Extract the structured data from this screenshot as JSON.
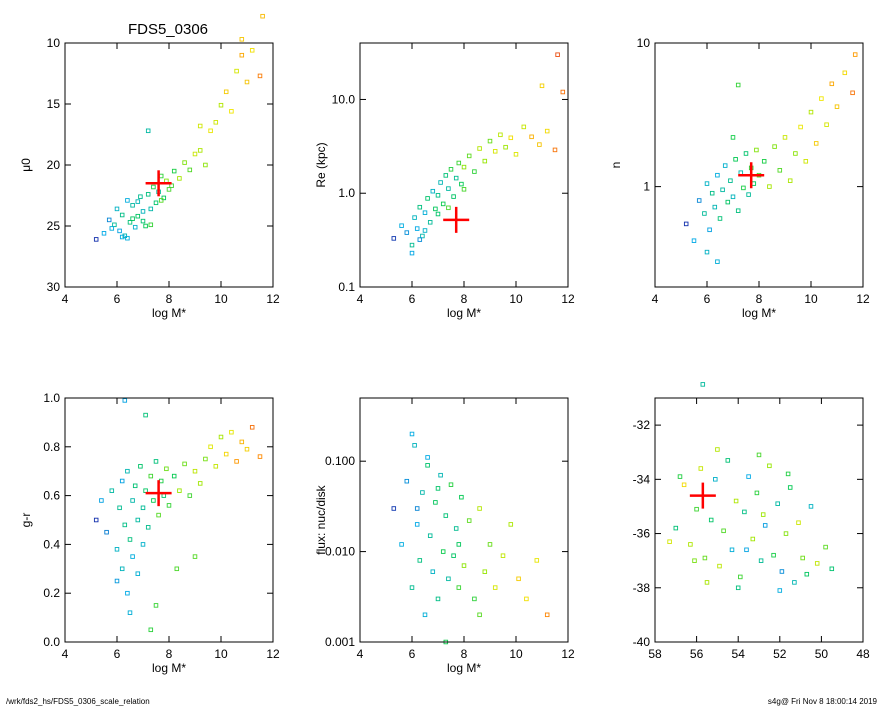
{
  "title": "FDS5_0306",
  "footer": {
    "left": "/wrk/fds2_hs/FDS5_0306_scale_relation",
    "right": "s4g@  Fri Nov  8 18:00:14 2019"
  },
  "colors": {
    "marker": "#ff0000",
    "axes": "#000000"
  },
  "chart_data": [
    {
      "id": "mu0",
      "type": "scatter",
      "xlabel": "log M*",
      "ylabel": "μ0",
      "xlim": [
        4,
        12
      ],
      "ylim": [
        30,
        10
      ],
      "xticks": [
        "4",
        "6",
        "8",
        "10",
        "12"
      ],
      "yticks": [
        "10",
        "15",
        "20",
        "25",
        "30"
      ],
      "marker": {
        "x": 7.6,
        "y": 21.5
      },
      "points": [
        [
          5.2,
          26.1
        ],
        [
          5.5,
          25.6
        ],
        [
          5.7,
          24.5
        ],
        [
          5.9,
          24.9
        ],
        [
          6.0,
          23.6
        ],
        [
          6.1,
          25.4
        ],
        [
          6.2,
          24.1
        ],
        [
          6.3,
          25.8
        ],
        [
          6.4,
          22.9
        ],
        [
          6.5,
          24.7
        ],
        [
          6.6,
          23.3
        ],
        [
          6.7,
          25.1
        ],
        [
          6.8,
          24.2
        ],
        [
          6.9,
          22.6
        ],
        [
          7.0,
          23.8
        ],
        [
          7.1,
          25.0
        ],
        [
          7.2,
          22.4
        ],
        [
          7.3,
          23.6
        ],
        [
          7.4,
          21.8
        ],
        [
          7.5,
          23.1
        ],
        [
          7.6,
          22.2
        ],
        [
          7.7,
          20.9
        ],
        [
          7.8,
          22.7
        ],
        [
          7.9,
          21.3
        ],
        [
          8.0,
          22.0
        ],
        [
          8.2,
          20.5
        ],
        [
          8.4,
          21.1
        ],
        [
          8.6,
          19.8
        ],
        [
          8.8,
          20.4
        ],
        [
          9.0,
          19.1
        ],
        [
          9.2,
          18.8
        ],
        [
          9.4,
          20.0
        ],
        [
          9.6,
          17.2
        ],
        [
          9.8,
          16.5
        ],
        [
          10.0,
          15.1
        ],
        [
          10.2,
          14.0
        ],
        [
          10.4,
          15.6
        ],
        [
          10.6,
          12.3
        ],
        [
          10.8,
          11.0
        ],
        [
          11.0,
          13.2
        ],
        [
          11.2,
          10.6
        ],
        [
          11.5,
          12.7
        ],
        [
          6.2,
          25.9
        ],
        [
          6.6,
          24.4
        ],
        [
          7.0,
          24.6
        ],
        [
          6.8,
          23.0
        ],
        [
          7.3,
          24.9
        ],
        [
          5.8,
          25.2
        ],
        [
          6.4,
          26.0
        ],
        [
          7.7,
          22.9
        ],
        [
          8.1,
          21.7
        ],
        [
          7.2,
          17.2
        ],
        [
          9.2,
          16.8
        ],
        [
          10.8,
          9.7
        ],
        [
          11.6,
          7.8
        ]
      ]
    },
    {
      "id": "re",
      "type": "scatter",
      "xlabel": "log M*",
      "ylabel": "Re (kpc)",
      "ylog": true,
      "xlim": [
        4,
        12
      ],
      "ylim": [
        0.1,
        40
      ],
      "xticks": [
        "4",
        "6",
        "8",
        "10",
        "12"
      ],
      "yticks": [
        "0.1",
        "1.0",
        "10.0"
      ],
      "marker": {
        "x": 7.7,
        "y": 0.52
      },
      "points": [
        [
          5.3,
          0.33
        ],
        [
          5.6,
          0.45
        ],
        [
          5.8,
          0.38
        ],
        [
          6.0,
          0.28
        ],
        [
          6.1,
          0.55
        ],
        [
          6.2,
          0.42
        ],
        [
          6.3,
          0.71
        ],
        [
          6.4,
          0.35
        ],
        [
          6.5,
          0.62
        ],
        [
          6.6,
          0.88
        ],
        [
          6.7,
          0.49
        ],
        [
          6.8,
          1.05
        ],
        [
          6.9,
          0.68
        ],
        [
          7.0,
          0.95
        ],
        [
          7.1,
          1.3
        ],
        [
          7.2,
          0.77
        ],
        [
          7.3,
          1.55
        ],
        [
          7.4,
          1.12
        ],
        [
          7.5,
          1.8
        ],
        [
          7.6,
          0.92
        ],
        [
          7.7,
          1.45
        ],
        [
          7.8,
          2.1
        ],
        [
          7.9,
          1.25
        ],
        [
          8.0,
          1.9
        ],
        [
          8.2,
          2.5
        ],
        [
          8.4,
          1.7
        ],
        [
          8.6,
          3.0
        ],
        [
          8.8,
          2.2
        ],
        [
          9.0,
          3.6
        ],
        [
          9.2,
          2.8
        ],
        [
          9.4,
          4.2
        ],
        [
          9.6,
          3.1
        ],
        [
          9.8,
          3.9
        ],
        [
          10.0,
          2.6
        ],
        [
          10.3,
          5.1
        ],
        [
          10.6,
          4.0
        ],
        [
          10.9,
          3.3
        ],
        [
          11.2,
          4.6
        ],
        [
          11.5,
          2.9
        ],
        [
          6.0,
          0.23
        ],
        [
          6.3,
          0.32
        ],
        [
          7.0,
          0.6
        ],
        [
          6.5,
          0.4
        ],
        [
          7.4,
          0.7
        ],
        [
          8.0,
          1.1
        ],
        [
          11.0,
          14.0
        ],
        [
          11.6,
          30.0
        ],
        [
          11.8,
          12.0
        ]
      ]
    },
    {
      "id": "n",
      "type": "scatter",
      "xlabel": "log M*",
      "ylabel": "n",
      "ylog": true,
      "xlim": [
        4,
        12
      ],
      "ylim": [
        0.2,
        10
      ],
      "xticks": [
        "4",
        "6",
        "8",
        "10",
        "12"
      ],
      "yticks": [
        "1",
        "10"
      ],
      "marker": {
        "x": 7.7,
        "y": 1.2
      },
      "points": [
        [
          5.2,
          0.55
        ],
        [
          5.5,
          0.42
        ],
        [
          5.7,
          0.8
        ],
        [
          5.9,
          0.65
        ],
        [
          6.0,
          1.05
        ],
        [
          6.1,
          0.5
        ],
        [
          6.2,
          0.9
        ],
        [
          6.3,
          0.72
        ],
        [
          6.4,
          1.2
        ],
        [
          6.5,
          0.6
        ],
        [
          6.6,
          0.95
        ],
        [
          6.7,
          1.4
        ],
        [
          6.8,
          0.78
        ],
        [
          6.9,
          1.1
        ],
        [
          7.0,
          0.85
        ],
        [
          7.1,
          1.55
        ],
        [
          7.2,
          0.68
        ],
        [
          7.3,
          1.25
        ],
        [
          7.4,
          0.98
        ],
        [
          7.5,
          1.7
        ],
        [
          7.6,
          0.88
        ],
        [
          7.7,
          1.35
        ],
        [
          7.8,
          1.05
        ],
        [
          7.9,
          1.8
        ],
        [
          8.0,
          1.2
        ],
        [
          8.2,
          1.5
        ],
        [
          8.4,
          1.0
        ],
        [
          8.6,
          1.9
        ],
        [
          8.8,
          1.3
        ],
        [
          9.0,
          2.2
        ],
        [
          9.2,
          1.1
        ],
        [
          9.4,
          1.7
        ],
        [
          9.6,
          2.6
        ],
        [
          9.8,
          1.5
        ],
        [
          10.0,
          3.3
        ],
        [
          10.2,
          2.0
        ],
        [
          10.4,
          4.1
        ],
        [
          10.6,
          2.7
        ],
        [
          10.8,
          5.2
        ],
        [
          11.0,
          3.6
        ],
        [
          11.3,
          6.2
        ],
        [
          11.6,
          4.5
        ],
        [
          11.7,
          8.3
        ],
        [
          7.2,
          5.1
        ],
        [
          6.0,
          0.35
        ],
        [
          6.4,
          0.3
        ],
        [
          7.0,
          2.2
        ]
      ]
    },
    {
      "id": "gr",
      "type": "scatter",
      "xlabel": "log M*",
      "ylabel": "g-r",
      "xlim": [
        4,
        12
      ],
      "ylim": [
        0.0,
        1.0
      ],
      "xticks": [
        "4",
        "6",
        "8",
        "10",
        "12"
      ],
      "yticks": [
        "0.0",
        "0.2",
        "0.4",
        "0.6",
        "0.8",
        "1.0"
      ],
      "marker": {
        "x": 7.6,
        "y": 0.61
      },
      "points": [
        [
          5.2,
          0.5
        ],
        [
          5.4,
          0.58
        ],
        [
          5.6,
          0.45
        ],
        [
          5.8,
          0.62
        ],
        [
          6.0,
          0.38
        ],
        [
          6.0,
          0.25
        ],
        [
          6.1,
          0.55
        ],
        [
          6.2,
          0.3
        ],
        [
          6.2,
          0.66
        ],
        [
          6.3,
          0.48
        ],
        [
          6.4,
          0.7
        ],
        [
          6.4,
          0.2
        ],
        [
          6.5,
          0.42
        ],
        [
          6.6,
          0.58
        ],
        [
          6.6,
          0.35
        ],
        [
          6.7,
          0.64
        ],
        [
          6.8,
          0.5
        ],
        [
          6.8,
          0.28
        ],
        [
          6.9,
          0.72
        ],
        [
          7.0,
          0.55
        ],
        [
          7.0,
          0.4
        ],
        [
          7.1,
          0.62
        ],
        [
          7.2,
          0.47
        ],
        [
          7.3,
          0.68
        ],
        [
          7.4,
          0.58
        ],
        [
          7.5,
          0.74
        ],
        [
          7.6,
          0.52
        ],
        [
          7.7,
          0.66
        ],
        [
          7.8,
          0.6
        ],
        [
          7.9,
          0.71
        ],
        [
          8.0,
          0.56
        ],
        [
          8.2,
          0.68
        ],
        [
          8.4,
          0.62
        ],
        [
          8.6,
          0.73
        ],
        [
          8.8,
          0.6
        ],
        [
          9.0,
          0.7
        ],
        [
          9.2,
          0.65
        ],
        [
          9.4,
          0.75
        ],
        [
          9.6,
          0.8
        ],
        [
          9.8,
          0.72
        ],
        [
          10.0,
          0.84
        ],
        [
          10.2,
          0.77
        ],
        [
          10.4,
          0.86
        ],
        [
          10.6,
          0.74
        ],
        [
          10.8,
          0.82
        ],
        [
          11.0,
          0.79
        ],
        [
          11.2,
          0.88
        ],
        [
          11.5,
          0.76
        ],
        [
          6.5,
          0.12
        ],
        [
          7.3,
          0.05
        ],
        [
          7.1,
          0.93
        ],
        [
          6.3,
          0.99
        ],
        [
          7.5,
          0.15
        ],
        [
          8.3,
          0.3
        ],
        [
          9.0,
          0.35
        ]
      ]
    },
    {
      "id": "flux",
      "type": "scatter",
      "xlabel": "log M*",
      "ylabel": "flux: nuc/disk",
      "ylog": true,
      "xlim": [
        4,
        12
      ],
      "ylim": [
        0.001,
        0.5
      ],
      "xticks": [
        "4",
        "6",
        "8",
        "10",
        "12"
      ],
      "yticks": [
        "0.001",
        "0.010",
        "0.100"
      ],
      "points": [
        [
          5.3,
          0.03
        ],
        [
          5.6,
          0.012
        ],
        [
          5.8,
          0.06
        ],
        [
          6.0,
          0.004
        ],
        [
          6.1,
          0.15
        ],
        [
          6.2,
          0.02
        ],
        [
          6.3,
          0.008
        ],
        [
          6.4,
          0.045
        ],
        [
          6.5,
          0.002
        ],
        [
          6.6,
          0.09
        ],
        [
          6.7,
          0.015
        ],
        [
          6.8,
          0.006
        ],
        [
          6.9,
          0.035
        ],
        [
          7.0,
          0.003
        ],
        [
          7.1,
          0.07
        ],
        [
          7.2,
          0.01
        ],
        [
          7.3,
          0.025
        ],
        [
          7.4,
          0.005
        ],
        [
          7.5,
          0.055
        ],
        [
          7.6,
          0.009
        ],
        [
          7.7,
          0.018
        ],
        [
          7.8,
          0.004
        ],
        [
          7.9,
          0.04
        ],
        [
          8.0,
          0.007
        ],
        [
          8.2,
          0.022
        ],
        [
          8.4,
          0.003
        ],
        [
          8.6,
          0.03
        ],
        [
          8.8,
          0.006
        ],
        [
          9.0,
          0.012
        ],
        [
          9.2,
          0.004
        ],
        [
          9.5,
          0.009
        ],
        [
          9.8,
          0.02
        ],
        [
          10.1,
          0.005
        ],
        [
          10.4,
          0.003
        ],
        [
          10.8,
          0.008
        ],
        [
          11.2,
          0.002
        ],
        [
          6.0,
          0.2
        ],
        [
          6.6,
          0.11
        ],
        [
          7.3,
          0.001
        ],
        [
          8.6,
          0.002
        ],
        [
          6.2,
          0.03
        ],
        [
          7.0,
          0.05
        ],
        [
          7.8,
          0.012
        ]
      ]
    },
    {
      "id": "mag",
      "type": "scatter",
      "xlabel": "",
      "ylabel": "",
      "xlim": [
        58,
        48
      ],
      "ylim": [
        -40,
        -31
      ],
      "xticks": [
        "58",
        "56",
        "54",
        "52",
        "50",
        "48"
      ],
      "yticks": [
        "-40",
        "-38",
        "-36",
        "-34",
        "-32"
      ],
      "marker": {
        "x": 55.7,
        "y": -34.6
      },
      "points": [
        [
          57.0,
          -35.8
        ],
        [
          56.6,
          -34.2
        ],
        [
          56.3,
          -36.4
        ],
        [
          56.0,
          -35.1
        ],
        [
          55.8,
          -33.6
        ],
        [
          55.6,
          -36.9
        ],
        [
          55.3,
          -35.5
        ],
        [
          55.1,
          -34.0
        ],
        [
          54.9,
          -37.2
        ],
        [
          54.7,
          -35.9
        ],
        [
          54.5,
          -33.3
        ],
        [
          54.3,
          -36.6
        ],
        [
          54.1,
          -34.8
        ],
        [
          53.9,
          -37.6
        ],
        [
          53.7,
          -35.2
        ],
        [
          53.5,
          -33.9
        ],
        [
          53.3,
          -36.2
        ],
        [
          53.1,
          -34.5
        ],
        [
          52.9,
          -37.0
        ],
        [
          52.7,
          -35.7
        ],
        [
          52.5,
          -33.5
        ],
        [
          52.3,
          -36.8
        ],
        [
          52.1,
          -34.9
        ],
        [
          51.9,
          -37.4
        ],
        [
          51.7,
          -36.0
        ],
        [
          51.5,
          -34.3
        ],
        [
          51.3,
          -37.8
        ],
        [
          51.1,
          -35.6
        ],
        [
          50.9,
          -36.9
        ],
        [
          50.7,
          -37.5
        ],
        [
          50.5,
          -35.0
        ],
        [
          50.2,
          -37.1
        ],
        [
          49.8,
          -36.5
        ],
        [
          49.5,
          -37.3
        ],
        [
          56.8,
          -33.9
        ],
        [
          55.0,
          -32.9
        ],
        [
          53.0,
          -33.1
        ],
        [
          54.0,
          -38.0
        ],
        [
          52.0,
          -38.1
        ],
        [
          55.5,
          -37.8
        ],
        [
          57.3,
          -36.3
        ],
        [
          56.1,
          -37.0
        ],
        [
          53.6,
          -36.6
        ],
        [
          52.8,
          -35.3
        ],
        [
          51.6,
          -33.8
        ],
        [
          55.7,
          -30.5
        ]
      ]
    }
  ]
}
